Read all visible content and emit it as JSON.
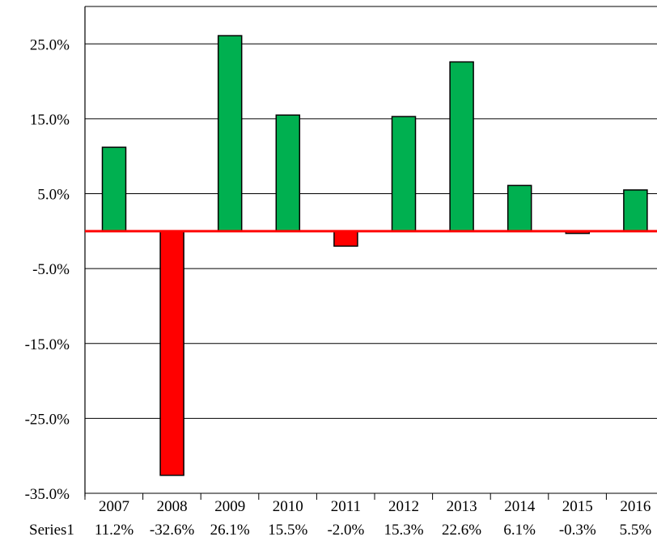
{
  "chart_data": {
    "type": "bar",
    "title": "",
    "xlabel": "",
    "ylabel": "",
    "categories": [
      "2007",
      "2008",
      "2009",
      "2010",
      "2011",
      "2012",
      "2013",
      "2014",
      "2015",
      "2016"
    ],
    "series": [
      {
        "name": "Series1",
        "values": [
          11.2,
          -32.6,
          26.1,
          15.5,
          -2.0,
          15.3,
          22.6,
          6.1,
          -0.3,
          5.5
        ],
        "value_labels": [
          "11.2%",
          "-32.6%",
          "26.1%",
          "15.5%",
          "-2.0%",
          "15.3%",
          "22.6%",
          "6.1%",
          "-0.3%",
          "5.5%"
        ]
      }
    ],
    "ylim": [
      -35,
      30
    ],
    "yticks": [
      25,
      15,
      5,
      -5,
      -15,
      -25,
      -35
    ],
    "ytick_labels": [
      "25.0%",
      "15.0%",
      "5.0%",
      "-5.0%",
      "-15.0%",
      "-25.0%",
      "-35.0%"
    ],
    "data_table": true,
    "grid": true,
    "legend": "none",
    "colors": {
      "positive": "#00B050",
      "negative": "#FF0000",
      "zero_line": "#FF0000",
      "grid": "#000000",
      "bar_outline": "#000000"
    }
  }
}
